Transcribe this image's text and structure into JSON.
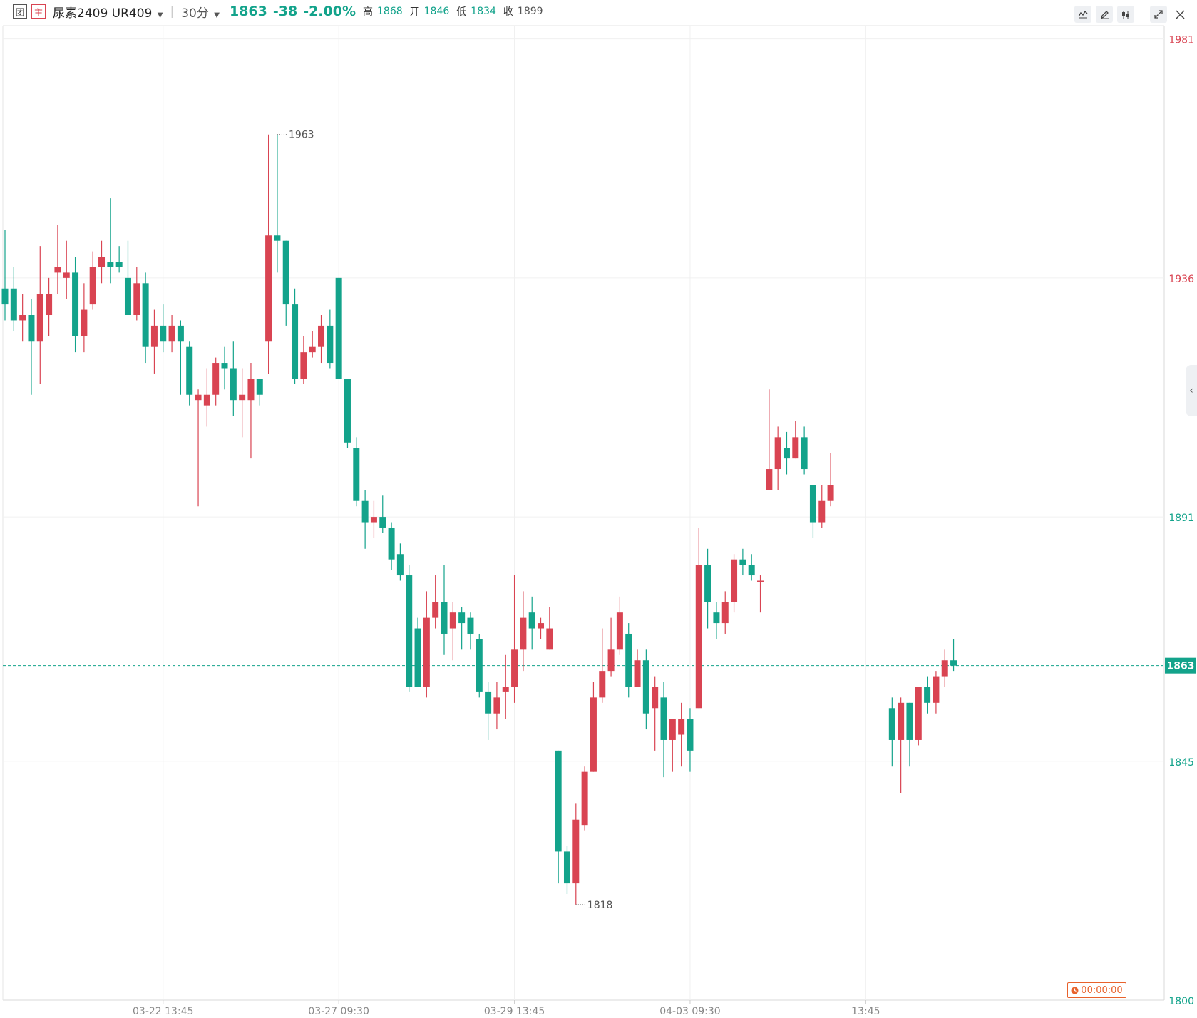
{
  "header": {
    "icon_left_label": "团",
    "icon_main_label": "主",
    "instrument": "尿素2409 UR409",
    "period": "30分",
    "last": "1863",
    "change": "-38",
    "change_pct": "-2.00%",
    "high_label": "高",
    "high": "1868",
    "open_label": "开",
    "open": "1846",
    "low_label": "低",
    "low": "1834",
    "close_label": "收",
    "close": "1899"
  },
  "toolbar": {
    "icons": [
      "line-chart-icon",
      "pencil-icon",
      "candlestick-icon",
      "expand-icon",
      "close-icon"
    ]
  },
  "timer": {
    "label": "00:00:00"
  },
  "colors": {
    "up": "#d94452",
    "down": "#13a38b",
    "grid": "#f0f0f0",
    "text": "#888888"
  },
  "chart_data": {
    "type": "candlestick",
    "title": "",
    "y_ticks": [
      1981,
      1936,
      1891,
      1845,
      1800
    ],
    "y_tick_colors": [
      "#d94452",
      "#d94452",
      "#13a38b",
      "#13a38b",
      "#13a38b"
    ],
    "ylim": [
      1800,
      1983.5
    ],
    "x_ticks": [
      {
        "index": 18,
        "label": "03-22 13:45"
      },
      {
        "index": 38,
        "label": "03-27 09:30"
      },
      {
        "index": 58,
        "label": "03-29 13:45"
      },
      {
        "index": 78,
        "label": "04-03 09:30"
      },
      {
        "index": 98,
        "label": "13:45"
      }
    ],
    "current_price": 1863,
    "annotations": [
      {
        "index": 31,
        "value": 1963,
        "label": "1963"
      },
      {
        "index": 65,
        "value": 1818,
        "label": "1818"
      }
    ],
    "candles": [
      [
        1934,
        1931,
        1945,
        1928
      ],
      [
        1934,
        1928,
        1938,
        1926
      ],
      [
        1928,
        1929,
        1933,
        1924
      ],
      [
        1929,
        1924,
        1932,
        1914
      ],
      [
        1924,
        1933,
        1942,
        1916
      ],
      [
        1929,
        1933,
        1936,
        1925
      ],
      [
        1937,
        1938,
        1946,
        1933
      ],
      [
        1936,
        1937,
        1943,
        1932
      ],
      [
        1937,
        1925,
        1940,
        1922
      ],
      [
        1925,
        1930,
        1935,
        1922
      ],
      [
        1931,
        1938,
        1941,
        1930
      ],
      [
        1938,
        1940,
        1943,
        1935
      ],
      [
        1939,
        1938,
        1951,
        1935
      ],
      [
        1939,
        1938,
        1942,
        1937
      ],
      [
        1936,
        1929,
        1943,
        1930
      ],
      [
        1929,
        1935,
        1938,
        1928
      ],
      [
        1935,
        1923,
        1937,
        1920
      ],
      [
        1923,
        1927,
        1930,
        1918
      ],
      [
        1927,
        1924,
        1931,
        1922
      ],
      [
        1924,
        1927,
        1929,
        1922
      ],
      [
        1927,
        1924,
        1928,
        1914
      ],
      [
        1923,
        1914,
        1924,
        1912
      ],
      [
        1913,
        1914,
        1915,
        1893
      ],
      [
        1912,
        1914,
        1919,
        1908
      ],
      [
        1914,
        1920,
        1921,
        1912
      ],
      [
        1920,
        1919,
        1923,
        1915
      ],
      [
        1919,
        1913,
        1924,
        1910
      ],
      [
        1913,
        1914,
        1919,
        1906
      ],
      [
        1913,
        1917,
        1920,
        1902
      ],
      [
        1917,
        1914,
        1917,
        1912
      ],
      [
        1924,
        1944,
        1963,
        1918
      ],
      [
        1944,
        1943,
        1963,
        1937
      ],
      [
        1943,
        1931,
        1943,
        1927
      ],
      [
        1931,
        1917,
        1934,
        1916
      ],
      [
        1917,
        1922,
        1925,
        1916
      ],
      [
        1922,
        1923,
        1926,
        1921
      ],
      [
        1923,
        1927,
        1929,
        1920
      ],
      [
        1927,
        1920,
        1930,
        1919
      ],
      [
        1936,
        1917,
        1936,
        1917
      ],
      [
        1917,
        1905,
        1917,
        1904
      ],
      [
        1904,
        1894,
        1906,
        1893
      ],
      [
        1894,
        1890,
        1896,
        1885
      ],
      [
        1890,
        1891,
        1894,
        1887
      ],
      [
        1891,
        1889,
        1895,
        1888
      ],
      [
        1889,
        1883,
        1890,
        1881
      ],
      [
        1884,
        1880,
        1886,
        1879
      ],
      [
        1880,
        1859,
        1882,
        1858
      ],
      [
        1870,
        1859,
        1872,
        1859
      ],
      [
        1859,
        1872,
        1877,
        1857
      ],
      [
        1872,
        1875,
        1880,
        1870
      ],
      [
        1875,
        1869,
        1882,
        1865
      ],
      [
        1870,
        1873,
        1875,
        1864
      ],
      [
        1873,
        1871,
        1874,
        1866
      ],
      [
        1872,
        1869,
        1873,
        1866
      ],
      [
        1868,
        1858,
        1869,
        1857
      ],
      [
        1858,
        1854,
        1860,
        1849
      ],
      [
        1854,
        1857,
        1860,
        1851
      ],
      [
        1858,
        1859,
        1865,
        1853
      ],
      [
        1859,
        1866,
        1880,
        1856
      ],
      [
        1866,
        1872,
        1877,
        1862
      ],
      [
        1873,
        1870,
        1876,
        1866
      ],
      [
        1870,
        1871,
        1872,
        1868
      ],
      [
        1866,
        1870,
        1874,
        1866
      ],
      [
        1847,
        1828,
        1847,
        1822
      ],
      [
        1828,
        1822,
        1829,
        1820
      ],
      [
        1822,
        1834,
        1837,
        1818
      ],
      [
        1833,
        1843,
        1844,
        1832
      ],
      [
        1843,
        1857,
        1860,
        1843
      ],
      [
        1857,
        1862,
        1870,
        1856
      ],
      [
        1862,
        1866,
        1872,
        1861
      ],
      [
        1866,
        1873,
        1876,
        1865
      ],
      [
        1869,
        1859,
        1871,
        1857
      ],
      [
        1859,
        1864,
        1866,
        1859
      ],
      [
        1864,
        1854,
        1866,
        1851
      ],
      [
        1855,
        1859,
        1861,
        1847
      ],
      [
        1857,
        1849,
        1860,
        1842
      ],
      [
        1849,
        1853,
        1853,
        1843
      ],
      [
        1850,
        1853,
        1856,
        1844
      ],
      [
        1853,
        1847,
        1855,
        1843
      ],
      [
        1855,
        1882,
        1889,
        1855
      ],
      [
        1882,
        1875,
        1885,
        1870
      ],
      [
        1873,
        1871,
        1875,
        1868
      ],
      [
        1871,
        1875,
        1877,
        1869
      ],
      [
        1875,
        1883,
        1884,
        1873
      ],
      [
        1883,
        1882,
        1885,
        1880
      ],
      [
        1882,
        1880,
        1884,
        1879
      ],
      [
        1879,
        1879,
        1880,
        1873
      ],
      [
        1896,
        1900,
        1915,
        1896
      ],
      [
        1900,
        1906,
        1908,
        1896
      ],
      [
        1904,
        1902,
        1907,
        1899
      ],
      [
        1902,
        1906,
        1909,
        1902
      ],
      [
        1906,
        1900,
        1908,
        1899
      ],
      [
        1897,
        1890,
        1897,
        1887
      ],
      [
        1890,
        1894,
        1897,
        1889
      ],
      [
        1894,
        1897,
        1903,
        1893
      ]
    ],
    "candles_segment2": [
      [
        1855,
        1849,
        1857,
        1844
      ],
      [
        1849,
        1856,
        1857,
        1839
      ],
      [
        1856,
        1849,
        1856,
        1844
      ],
      [
        1849,
        1859,
        1859,
        1848
      ],
      [
        1859,
        1856,
        1861,
        1854
      ],
      [
        1856,
        1861,
        1862,
        1854
      ],
      [
        1861,
        1864,
        1866,
        1859
      ],
      [
        1864,
        1863,
        1868,
        1862
      ]
    ]
  }
}
